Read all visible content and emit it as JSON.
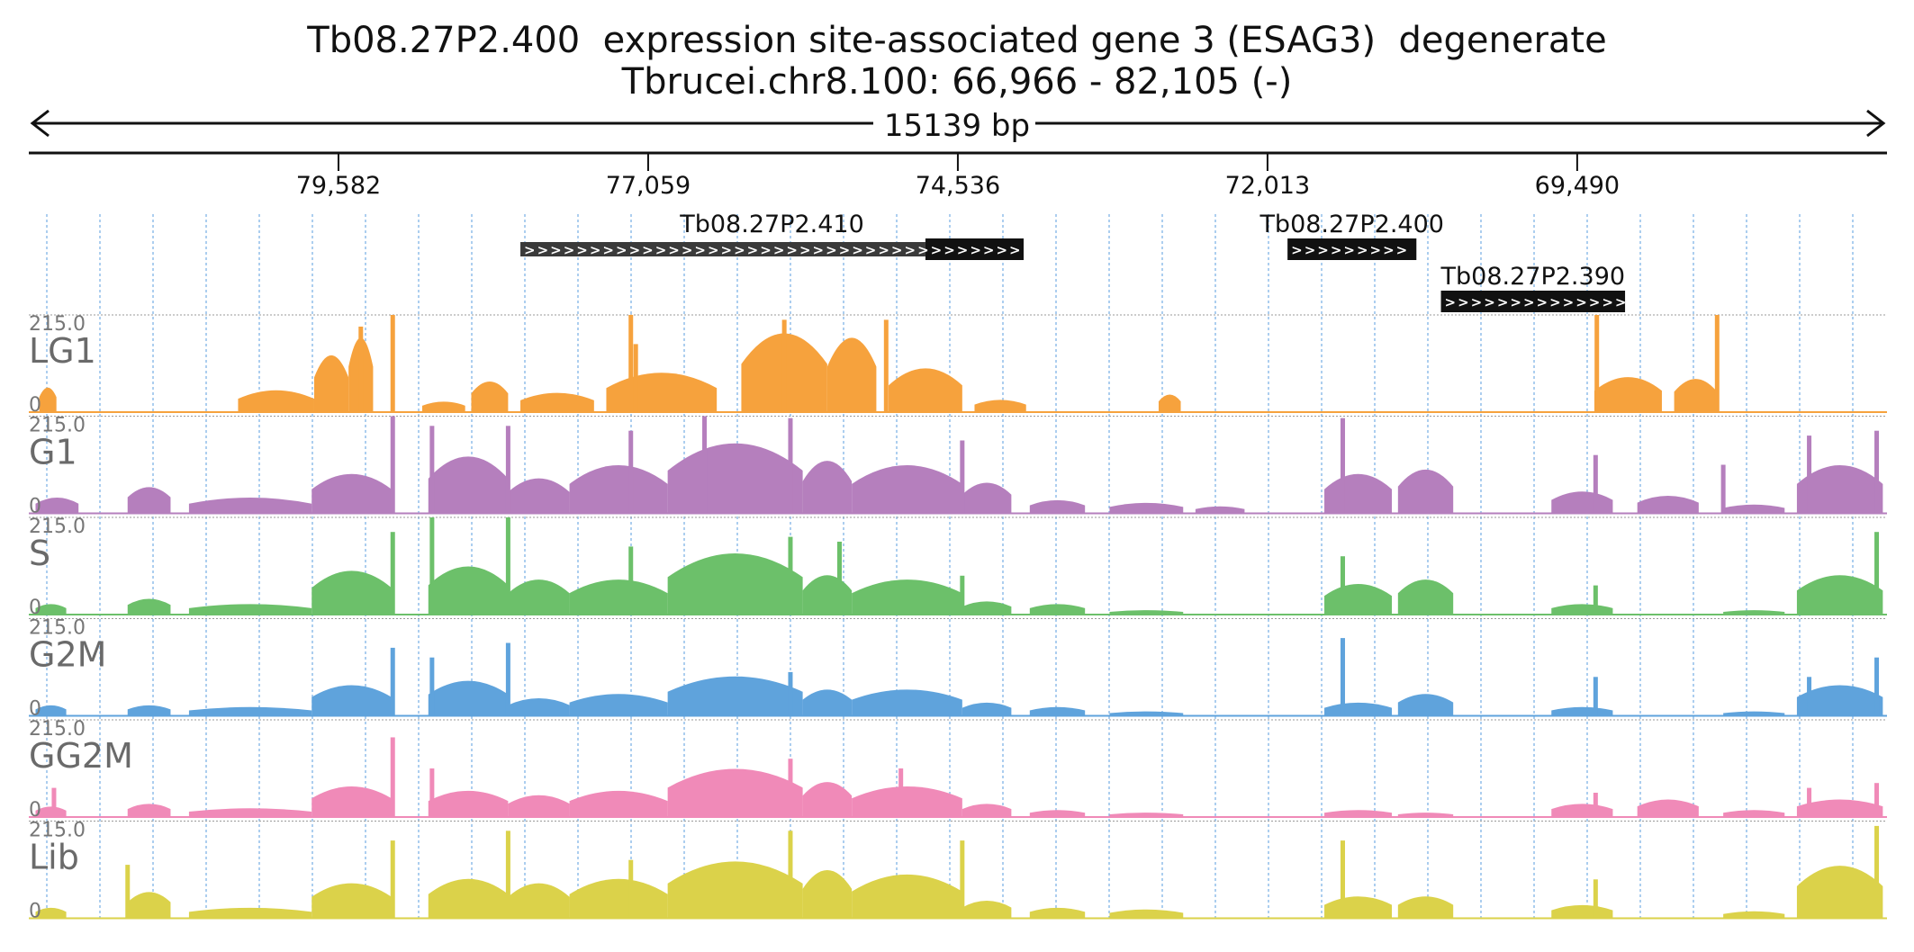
{
  "header": {
    "title_gene": "Tb08.27P2.400  expression site-associated gene 3 (ESAG3)  degenerate",
    "title_locus": "Tbrucei.chr8.100: 66,966 - 82,105 (-)",
    "span_label": "15139 bp"
  },
  "ruler": {
    "ticks": [
      "79,582",
      "77,059",
      "74,536",
      "72,013",
      "69,490"
    ]
  },
  "genes": [
    {
      "name": "Tb08.27P2.410",
      "start": 78.1,
      "end": 74.0,
      "thick_start": 74.8,
      "color": "#111111"
    },
    {
      "name": "Tb08.27P2.400",
      "start": 71.85,
      "end": 70.8,
      "thick_start": 71.85,
      "color": "#111111"
    },
    {
      "name": "Tb08.27P2.390",
      "start": 70.6,
      "end": 69.1,
      "thick_start": 70.6,
      "color": "#111111"
    }
  ],
  "chart_data": {
    "type": "area",
    "x_axis": {
      "label": "chromosome position (bp)",
      "reversed": true,
      "start_bp": 82105,
      "end_bp": 66966,
      "ticks_bp": [
        79582,
        77059,
        74536,
        72013,
        69490
      ]
    },
    "y_max_label": "215.0",
    "y_min_label": "0",
    "grid": true,
    "series": [
      {
        "name": "LG1",
        "color": "#f6a23d",
        "blocks": [
          {
            "a": 82.02,
            "b": 81.88,
            "h": 0.28
          },
          {
            "a": 80.4,
            "b": 79.78,
            "h": 0.25
          },
          {
            "a": 79.78,
            "b": 79.5,
            "h": 0.65
          },
          {
            "a": 79.5,
            "b": 79.3,
            "h": 0.85
          },
          {
            "a": 78.9,
            "b": 78.55,
            "h": 0.12
          },
          {
            "a": 78.5,
            "b": 78.2,
            "h": 0.35
          },
          {
            "a": 78.1,
            "b": 77.5,
            "h": 0.22
          },
          {
            "a": 77.4,
            "b": 76.5,
            "h": 0.45
          },
          {
            "a": 76.3,
            "b": 75.6,
            "h": 0.9
          },
          {
            "a": 75.6,
            "b": 75.2,
            "h": 0.85
          },
          {
            "a": 75.1,
            "b": 74.5,
            "h": 0.5
          },
          {
            "a": 74.4,
            "b": 73.98,
            "h": 0.14
          },
          {
            "a": 72.9,
            "b": 72.72,
            "h": 0.2
          },
          {
            "a": 69.35,
            "b": 68.8,
            "h": 0.4
          },
          {
            "a": 68.7,
            "b": 68.35,
            "h": 0.38
          }
        ],
        "spikes": [
          {
            "x": 79.4,
            "h": 0.88
          },
          {
            "x": 79.14,
            "h": 1.0
          },
          {
            "x": 77.2,
            "h": 1.0
          },
          {
            "x": 77.16,
            "h": 0.7
          },
          {
            "x": 75.95,
            "h": 0.95
          },
          {
            "x": 75.12,
            "h": 0.95
          },
          {
            "x": 69.33,
            "h": 1.0
          },
          {
            "x": 68.35,
            "h": 1.0
          }
        ]
      },
      {
        "name": "G1",
        "color": "#b57fbd",
        "blocks": [
          {
            "a": 82.05,
            "b": 81.7,
            "h": 0.18
          },
          {
            "a": 81.3,
            "b": 80.95,
            "h": 0.3
          },
          {
            "a": 80.8,
            "b": 79.8,
            "h": 0.18
          },
          {
            "a": 79.8,
            "b": 79.15,
            "h": 0.45
          },
          {
            "a": 78.85,
            "b": 78.2,
            "h": 0.65
          },
          {
            "a": 78.2,
            "b": 77.7,
            "h": 0.4
          },
          {
            "a": 77.7,
            "b": 76.9,
            "h": 0.55
          },
          {
            "a": 76.9,
            "b": 75.8,
            "h": 0.8
          },
          {
            "a": 75.8,
            "b": 75.4,
            "h": 0.6
          },
          {
            "a": 75.4,
            "b": 74.5,
            "h": 0.55
          },
          {
            "a": 74.5,
            "b": 74.1,
            "h": 0.35
          },
          {
            "a": 73.95,
            "b": 73.5,
            "h": 0.15
          },
          {
            "a": 73.3,
            "b": 72.7,
            "h": 0.12
          },
          {
            "a": 72.6,
            "b": 72.2,
            "h": 0.08
          },
          {
            "a": 71.55,
            "b": 71.0,
            "h": 0.45
          },
          {
            "a": 70.95,
            "b": 70.5,
            "h": 0.5
          },
          {
            "a": 69.7,
            "b": 69.2,
            "h": 0.25
          },
          {
            "a": 69.0,
            "b": 68.5,
            "h": 0.2
          },
          {
            "a": 68.3,
            "b": 67.8,
            "h": 0.1
          },
          {
            "a": 67.7,
            "b": 67.0,
            "h": 0.55
          }
        ],
        "spikes": [
          {
            "x": 79.14,
            "h": 1.0
          },
          {
            "x": 78.82,
            "h": 0.9
          },
          {
            "x": 78.2,
            "h": 0.9
          },
          {
            "x": 77.2,
            "h": 0.85
          },
          {
            "x": 76.6,
            "h": 1.0
          },
          {
            "x": 75.9,
            "h": 0.98
          },
          {
            "x": 74.5,
            "h": 0.75
          },
          {
            "x": 71.4,
            "h": 0.98
          },
          {
            "x": 69.34,
            "h": 0.6
          },
          {
            "x": 68.3,
            "h": 0.5
          },
          {
            "x": 67.6,
            "h": 0.8
          },
          {
            "x": 67.05,
            "h": 0.85
          }
        ]
      },
      {
        "name": "S",
        "color": "#6cc06a",
        "blocks": [
          {
            "a": 82.05,
            "b": 81.8,
            "h": 0.12
          },
          {
            "a": 81.3,
            "b": 80.95,
            "h": 0.18
          },
          {
            "a": 80.8,
            "b": 79.8,
            "h": 0.12
          },
          {
            "a": 79.8,
            "b": 79.15,
            "h": 0.5
          },
          {
            "a": 78.85,
            "b": 78.2,
            "h": 0.55
          },
          {
            "a": 78.2,
            "b": 77.7,
            "h": 0.4
          },
          {
            "a": 77.7,
            "b": 76.9,
            "h": 0.4
          },
          {
            "a": 76.9,
            "b": 75.8,
            "h": 0.7
          },
          {
            "a": 75.8,
            "b": 75.4,
            "h": 0.45
          },
          {
            "a": 75.4,
            "b": 74.5,
            "h": 0.4
          },
          {
            "a": 74.5,
            "b": 74.1,
            "h": 0.15
          },
          {
            "a": 73.95,
            "b": 73.5,
            "h": 0.12
          },
          {
            "a": 73.3,
            "b": 72.7,
            "h": 0.05
          },
          {
            "a": 71.55,
            "b": 71.0,
            "h": 0.35
          },
          {
            "a": 70.95,
            "b": 70.5,
            "h": 0.4
          },
          {
            "a": 69.7,
            "b": 69.2,
            "h": 0.12
          },
          {
            "a": 68.3,
            "b": 67.8,
            "h": 0.05
          },
          {
            "a": 67.7,
            "b": 67.0,
            "h": 0.45
          }
        ],
        "spikes": [
          {
            "x": 79.14,
            "h": 0.85
          },
          {
            "x": 78.82,
            "h": 1.0
          },
          {
            "x": 78.2,
            "h": 1.0
          },
          {
            "x": 77.2,
            "h": 0.7
          },
          {
            "x": 75.9,
            "h": 0.8
          },
          {
            "x": 75.5,
            "h": 0.75
          },
          {
            "x": 74.5,
            "h": 0.4
          },
          {
            "x": 71.4,
            "h": 0.6
          },
          {
            "x": 69.34,
            "h": 0.3
          },
          {
            "x": 67.6,
            "h": 0.3
          },
          {
            "x": 67.05,
            "h": 0.85
          }
        ]
      },
      {
        "name": "G2M",
        "color": "#5fa3dc",
        "blocks": [
          {
            "a": 82.05,
            "b": 81.8,
            "h": 0.12
          },
          {
            "a": 81.3,
            "b": 80.95,
            "h": 0.12
          },
          {
            "a": 80.8,
            "b": 79.8,
            "h": 0.1
          },
          {
            "a": 79.8,
            "b": 79.15,
            "h": 0.35
          },
          {
            "a": 78.85,
            "b": 78.2,
            "h": 0.4
          },
          {
            "a": 78.2,
            "b": 77.7,
            "h": 0.2
          },
          {
            "a": 77.7,
            "b": 76.9,
            "h": 0.25
          },
          {
            "a": 76.9,
            "b": 75.8,
            "h": 0.45
          },
          {
            "a": 75.8,
            "b": 75.4,
            "h": 0.3
          },
          {
            "a": 75.4,
            "b": 74.5,
            "h": 0.3
          },
          {
            "a": 74.5,
            "b": 74.1,
            "h": 0.15
          },
          {
            "a": 73.95,
            "b": 73.5,
            "h": 0.1
          },
          {
            "a": 73.3,
            "b": 72.7,
            "h": 0.05
          },
          {
            "a": 71.55,
            "b": 71.0,
            "h": 0.15
          },
          {
            "a": 70.95,
            "b": 70.5,
            "h": 0.25
          },
          {
            "a": 69.7,
            "b": 69.2,
            "h": 0.1
          },
          {
            "a": 68.3,
            "b": 67.8,
            "h": 0.05
          },
          {
            "a": 67.7,
            "b": 67.0,
            "h": 0.35
          }
        ],
        "spikes": [
          {
            "x": 79.14,
            "h": 0.7
          },
          {
            "x": 78.82,
            "h": 0.6
          },
          {
            "x": 78.2,
            "h": 0.75
          },
          {
            "x": 75.9,
            "h": 0.45
          },
          {
            "x": 71.4,
            "h": 0.8
          },
          {
            "x": 69.34,
            "h": 0.4
          },
          {
            "x": 67.6,
            "h": 0.4
          },
          {
            "x": 67.05,
            "h": 0.6
          }
        ]
      },
      {
        "name": "GG2M",
        "color": "#f08ab8",
        "blocks": [
          {
            "a": 82.05,
            "b": 81.8,
            "h": 0.12
          },
          {
            "a": 81.3,
            "b": 80.95,
            "h": 0.15
          },
          {
            "a": 80.8,
            "b": 79.8,
            "h": 0.1
          },
          {
            "a": 79.8,
            "b": 79.15,
            "h": 0.35
          },
          {
            "a": 78.85,
            "b": 78.2,
            "h": 0.3
          },
          {
            "a": 78.2,
            "b": 77.7,
            "h": 0.25
          },
          {
            "a": 77.7,
            "b": 76.9,
            "h": 0.3
          },
          {
            "a": 76.9,
            "b": 75.8,
            "h": 0.55
          },
          {
            "a": 75.8,
            "b": 75.4,
            "h": 0.4
          },
          {
            "a": 75.4,
            "b": 74.5,
            "h": 0.35
          },
          {
            "a": 74.5,
            "b": 74.1,
            "h": 0.15
          },
          {
            "a": 73.95,
            "b": 73.5,
            "h": 0.08
          },
          {
            "a": 73.3,
            "b": 72.7,
            "h": 0.05
          },
          {
            "a": 71.55,
            "b": 71.0,
            "h": 0.08
          },
          {
            "a": 70.95,
            "b": 70.5,
            "h": 0.05
          },
          {
            "a": 69.7,
            "b": 69.2,
            "h": 0.15
          },
          {
            "a": 69.0,
            "b": 68.5,
            "h": 0.2
          },
          {
            "a": 68.3,
            "b": 67.8,
            "h": 0.08
          },
          {
            "a": 67.7,
            "b": 67.0,
            "h": 0.2
          }
        ],
        "spikes": [
          {
            "x": 81.9,
            "h": 0.3
          },
          {
            "x": 79.14,
            "h": 0.82
          },
          {
            "x": 78.82,
            "h": 0.5
          },
          {
            "x": 75.9,
            "h": 0.6
          },
          {
            "x": 75.0,
            "h": 0.5
          },
          {
            "x": 69.34,
            "h": 0.25
          },
          {
            "x": 67.6,
            "h": 0.3
          },
          {
            "x": 67.05,
            "h": 0.35
          }
        ]
      },
      {
        "name": "Lib",
        "color": "#dbd24a",
        "blocks": [
          {
            "a": 82.05,
            "b": 81.8,
            "h": 0.12
          },
          {
            "a": 81.3,
            "b": 80.95,
            "h": 0.3
          },
          {
            "a": 80.8,
            "b": 79.8,
            "h": 0.12
          },
          {
            "a": 79.8,
            "b": 79.15,
            "h": 0.4
          },
          {
            "a": 78.85,
            "b": 78.2,
            "h": 0.45
          },
          {
            "a": 78.2,
            "b": 77.7,
            "h": 0.4
          },
          {
            "a": 77.7,
            "b": 76.9,
            "h": 0.45
          },
          {
            "a": 76.9,
            "b": 75.8,
            "h": 0.65
          },
          {
            "a": 75.8,
            "b": 75.4,
            "h": 0.55
          },
          {
            "a": 75.4,
            "b": 74.5,
            "h": 0.5
          },
          {
            "a": 74.5,
            "b": 74.1,
            "h": 0.2
          },
          {
            "a": 73.95,
            "b": 73.5,
            "h": 0.12
          },
          {
            "a": 73.3,
            "b": 72.7,
            "h": 0.1
          },
          {
            "a": 71.55,
            "b": 71.0,
            "h": 0.25
          },
          {
            "a": 70.95,
            "b": 70.5,
            "h": 0.25
          },
          {
            "a": 69.7,
            "b": 69.2,
            "h": 0.15
          },
          {
            "a": 68.3,
            "b": 67.8,
            "h": 0.08
          },
          {
            "a": 67.7,
            "b": 67.0,
            "h": 0.6
          }
        ],
        "spikes": [
          {
            "x": 81.3,
            "h": 0.55
          },
          {
            "x": 79.14,
            "h": 0.8
          },
          {
            "x": 78.2,
            "h": 0.9
          },
          {
            "x": 77.2,
            "h": 0.6
          },
          {
            "x": 75.9,
            "h": 0.9
          },
          {
            "x": 74.5,
            "h": 0.8
          },
          {
            "x": 71.4,
            "h": 0.8
          },
          {
            "x": 69.34,
            "h": 0.4
          },
          {
            "x": 67.05,
            "h": 0.95
          }
        ]
      }
    ]
  }
}
